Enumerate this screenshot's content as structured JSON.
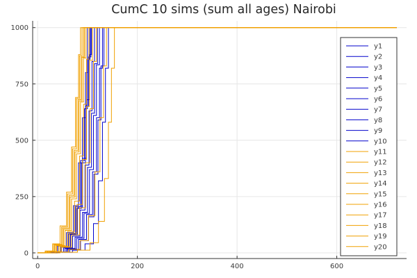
{
  "chart_data": {
    "type": "line",
    "title": "CumC 10 sims (sum all ages) Nairobi",
    "xlabel": "",
    "ylabel": "",
    "xlim": [
      -10,
      740
    ],
    "ylim": [
      -25,
      1030
    ],
    "xticks": [
      0,
      200,
      400,
      600
    ],
    "yticks": [
      0,
      250,
      500,
      750,
      1000
    ],
    "grid": true,
    "legend_position": "top-right",
    "series": [
      {
        "name": "y1",
        "color": "#0000cc",
        "x": [
          0,
          22,
          40,
          58,
          72,
          82,
          90,
          96,
          100,
          104,
          108,
          720
        ],
        "y": [
          0,
          6,
          30,
          90,
          210,
          400,
          600,
          800,
          1000,
          1000,
          1000,
          1000
        ]
      },
      {
        "name": "y2",
        "color": "#0000cc",
        "x": [
          0,
          28,
          48,
          66,
          80,
          90,
          98,
          104,
          108,
          720
        ],
        "y": [
          0,
          5,
          25,
          80,
          200,
          420,
          680,
          880,
          1000,
          1000
        ]
      },
      {
        "name": "y3",
        "color": "#0000cc",
        "x": [
          0,
          32,
          55,
          75,
          90,
          100,
          108,
          114,
          120,
          720
        ],
        "y": [
          0,
          4,
          20,
          70,
          180,
          380,
          620,
          840,
          1000,
          1000
        ]
      },
      {
        "name": "y4",
        "color": "#0000cc",
        "x": [
          0,
          35,
          60,
          82,
          98,
          110,
          118,
          124,
          130,
          720
        ],
        "y": [
          0,
          3,
          15,
          60,
          170,
          360,
          600,
          820,
          1000,
          1000
        ]
      },
      {
        "name": "y5",
        "color": "#0000cc",
        "x": [
          0,
          40,
          70,
          95,
          112,
          122,
          130,
          136,
          142,
          720
        ],
        "y": [
          0,
          3,
          12,
          40,
          130,
          320,
          580,
          820,
          1000,
          1000
        ]
      },
      {
        "name": "y6",
        "color": "#0000cc",
        "x": [
          0,
          25,
          45,
          62,
          76,
          86,
          94,
          100,
          105,
          720
        ],
        "y": [
          0,
          5,
          28,
          85,
          205,
          410,
          640,
          860,
          1000,
          1000
        ]
      },
      {
        "name": "y7",
        "color": "#0000cc",
        "x": [
          0,
          30,
          52,
          70,
          85,
          95,
          103,
          109,
          114,
          720
        ],
        "y": [
          0,
          4,
          22,
          75,
          190,
          390,
          630,
          850,
          1000,
          1000
        ]
      },
      {
        "name": "y8",
        "color": "#0000cc",
        "x": [
          0,
          38,
          64,
          86,
          102,
          113,
          121,
          127,
          133,
          720
        ],
        "y": [
          0,
          3,
          14,
          55,
          160,
          350,
          590,
          830,
          1000,
          1000
        ]
      },
      {
        "name": "y9",
        "color": "#0000cc",
        "x": [
          0,
          33,
          58,
          78,
          93,
          104,
          112,
          118,
          124,
          720
        ],
        "y": [
          0,
          4,
          18,
          65,
          175,
          370,
          610,
          835,
          1000,
          1000
        ]
      },
      {
        "name": "y10",
        "color": "#0000cc",
        "x": [
          0,
          27,
          47,
          64,
          78,
          88,
          96,
          102,
          107,
          720
        ],
        "y": [
          0,
          5,
          26,
          82,
          198,
          400,
          650,
          870,
          1000,
          1000
        ]
      },
      {
        "name": "y11",
        "color": "#f0a000",
        "x": [
          0,
          15,
          30,
          45,
          58,
          68,
          76,
          82,
          86,
          720
        ],
        "y": [
          0,
          8,
          40,
          120,
          270,
          470,
          690,
          880,
          1000,
          1000
        ]
      },
      {
        "name": "y12",
        "color": "#f0a000",
        "x": [
          0,
          18,
          34,
          50,
          63,
          73,
          81,
          87,
          92,
          720
        ],
        "y": [
          0,
          7,
          36,
          110,
          255,
          455,
          680,
          870,
          1000,
          1000
        ]
      },
      {
        "name": "y13",
        "color": "#f0a000",
        "x": [
          0,
          20,
          38,
          55,
          68,
          78,
          86,
          92,
          97,
          720
        ],
        "y": [
          0,
          6,
          32,
          100,
          240,
          440,
          670,
          865,
          1000,
          1000
        ]
      },
      {
        "name": "y14",
        "color": "#f0a000",
        "x": [
          0,
          22,
          42,
          60,
          74,
          84,
          92,
          98,
          103,
          720
        ],
        "y": [
          0,
          6,
          30,
          95,
          230,
          430,
          660,
          860,
          1000,
          1000
        ]
      },
      {
        "name": "y15",
        "color": "#f0a000",
        "x": [
          0,
          16,
          32,
          48,
          60,
          70,
          78,
          84,
          89,
          720
        ],
        "y": [
          0,
          8,
          38,
          115,
          262,
          462,
          685,
          875,
          1000,
          1000
        ]
      },
      {
        "name": "y16",
        "color": "#f0a000",
        "x": [
          0,
          24,
          45,
          64,
          79,
          90,
          98,
          104,
          110,
          720
        ],
        "y": [
          0,
          5,
          28,
          88,
          215,
          415,
          650,
          855,
          1000,
          1000
        ]
      },
      {
        "name": "y17",
        "color": "#f0a000",
        "x": [
          0,
          45,
          80,
          105,
          122,
          134,
          142,
          148,
          154,
          720
        ],
        "y": [
          0,
          3,
          12,
          45,
          140,
          330,
          580,
          820,
          1000,
          1000
        ]
      },
      {
        "name": "y18",
        "color": "#f0a000",
        "x": [
          0,
          19,
          36,
          52,
          65,
          75,
          83,
          89,
          94,
          720
        ],
        "y": [
          0,
          7,
          34,
          105,
          248,
          448,
          675,
          868,
          1000,
          1000
        ]
      },
      {
        "name": "y19",
        "color": "#f0a000",
        "x": [
          0,
          26,
          48,
          68,
          84,
          96,
          105,
          112,
          118,
          720
        ],
        "y": [
          0,
          5,
          25,
          80,
          200,
          400,
          640,
          850,
          1000,
          1000
        ]
      },
      {
        "name": "y20",
        "color": "#f0a000",
        "x": [
          0,
          35,
          62,
          85,
          102,
          115,
          125,
          132,
          138,
          720
        ],
        "y": [
          0,
          4,
          16,
          55,
          165,
          360,
          600,
          830,
          1000,
          1000
        ]
      }
    ]
  }
}
